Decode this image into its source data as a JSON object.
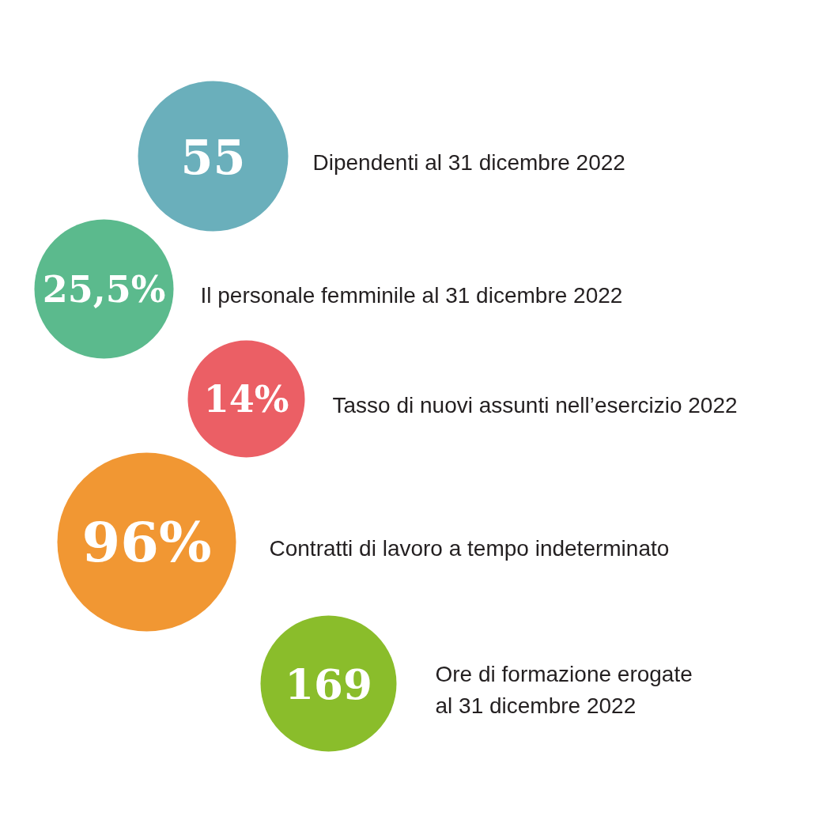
{
  "chart_data": {
    "type": "other",
    "categories": [
      "Dipendenti al 31 dicembre 2022",
      "Il personale femminile al 31 dicembre 2022",
      "Tasso di nuovi assunti nell’esercizio 2022",
      "Contratti di lavoro a tempo indeterminato",
      "Ore di formazione erogate\nal 31 dicembre 2022"
    ],
    "values": [
      55,
      25.5,
      14,
      96,
      169
    ],
    "value_labels": [
      "55",
      "25,5%",
      "14%",
      "96%",
      "169"
    ],
    "colors": [
      "#6aafbb",
      "#5bba8d",
      "#eb5f65",
      "#f19733",
      "#8abd2b"
    ]
  }
}
